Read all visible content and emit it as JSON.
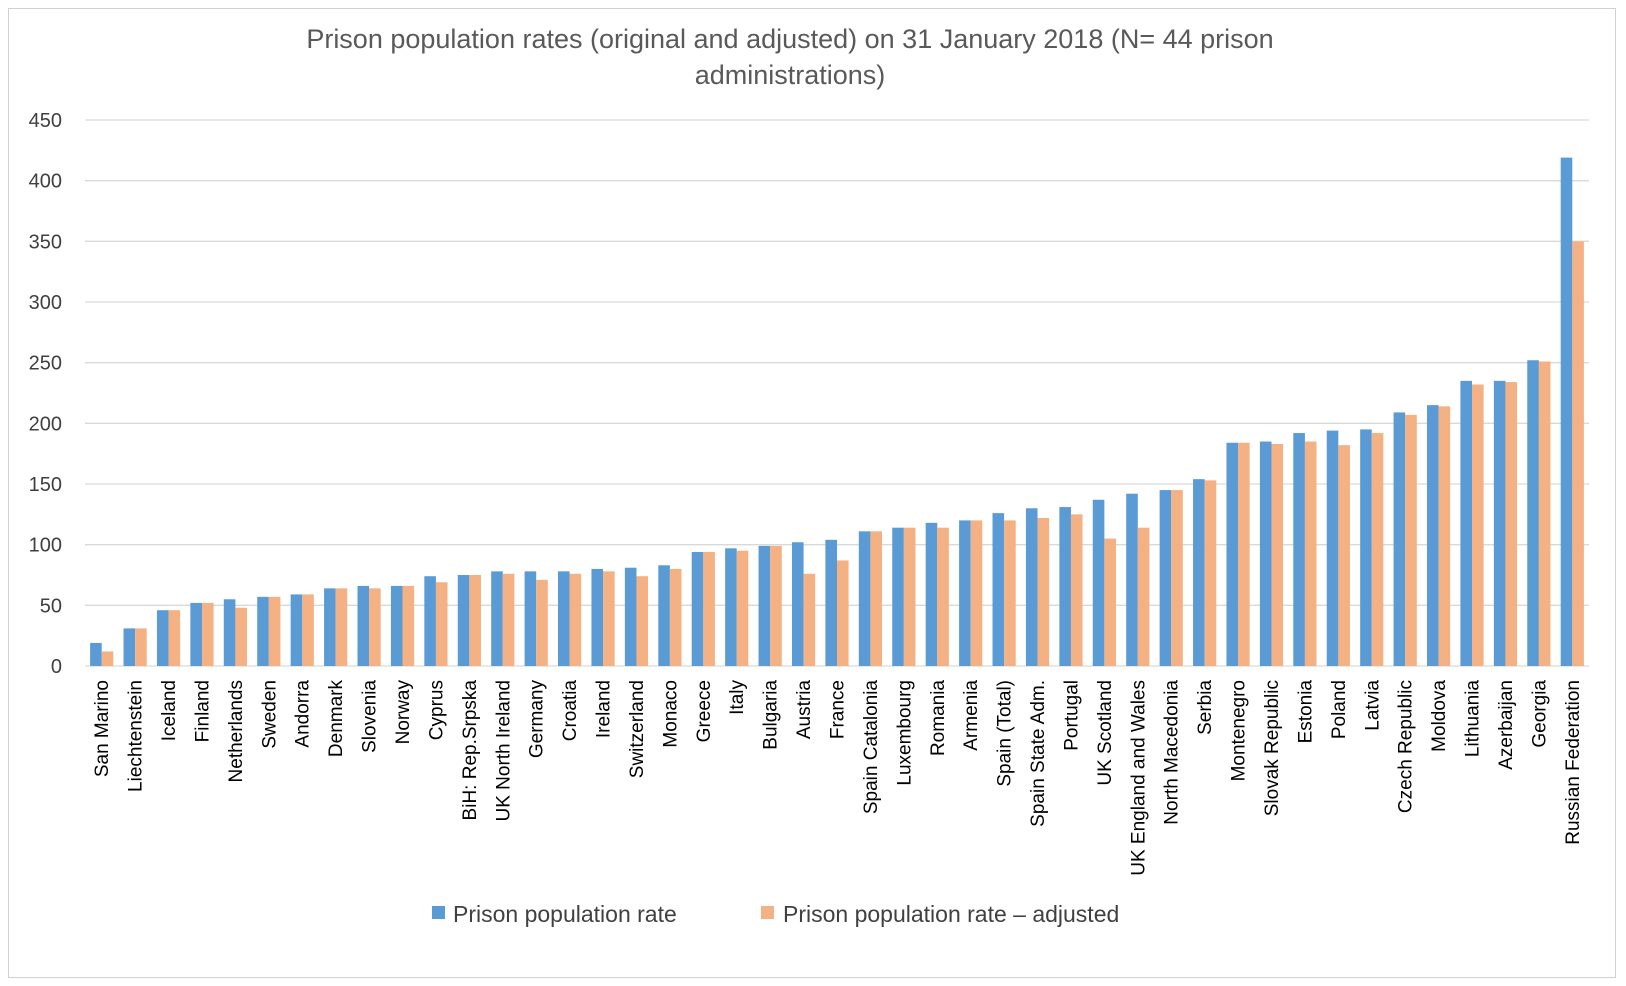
{
  "chart_data": {
    "type": "bar",
    "title_lines": [
      "Prison population rates (original and adjusted) on 31 January 2018 (N= 44 prison",
      "administrations)"
    ],
    "ylim": [
      0,
      450
    ],
    "yticks": [
      "0",
      "50",
      "100",
      "150",
      "200",
      "250",
      "300",
      "350",
      "400",
      "450"
    ],
    "grid": true,
    "legend_position": "bottom",
    "categories": [
      "San Marino",
      "Liechtenstein",
      "Iceland",
      "Finland",
      "Netherlands",
      "Sweden",
      "Andorra",
      "Denmark",
      "Slovenia",
      "Norway",
      "Cyprus",
      "BiH: Rep.Srpska",
      "UK North Ireland",
      "Germany",
      "Croatia",
      "Ireland",
      "Switzerland",
      "Monaco",
      "Greece",
      "Italy",
      "Bulgaria",
      "Austria",
      "France",
      "Spain Catalonia",
      "Luxembourg",
      "Romania",
      "Armenia",
      "Spain (Total)",
      "Spain State Adm.",
      "Portugal",
      "UK Scotland",
      "UK England and Wales",
      "North Macedonia",
      "Serbia",
      "Montenegro",
      "Slovak Republic",
      "Estonia",
      "Poland",
      "Latvia",
      "Czech Republic",
      "Moldova",
      "Lithuania",
      "Azerbaijan",
      "Georgia",
      "Russian Federation"
    ],
    "series": [
      {
        "name": "Prison population rate",
        "color": "#5b9bd5",
        "values": [
          19,
          31,
          46,
          52,
          55,
          57,
          59,
          64,
          66,
          66,
          74,
          75,
          78,
          78,
          78,
          80,
          81,
          83,
          94,
          97,
          99,
          102,
          104,
          111,
          114,
          118,
          120,
          126,
          130,
          131,
          137,
          142,
          145,
          154,
          184,
          185,
          192,
          194,
          195,
          209,
          215,
          235,
          235,
          252,
          419
        ]
      },
      {
        "name": "Prison population rate – adjusted",
        "color": "#f4b183",
        "values": [
          12,
          31,
          46,
          52,
          48,
          57,
          59,
          64,
          64,
          66,
          69,
          75,
          76,
          71,
          76,
          78,
          74,
          80,
          94,
          95,
          99,
          76,
          87,
          111,
          114,
          114,
          120,
          120,
          122,
          125,
          105,
          114,
          145,
          153,
          184,
          183,
          185,
          182,
          192,
          207,
          214,
          232,
          234,
          251,
          350
        ]
      }
    ]
  }
}
